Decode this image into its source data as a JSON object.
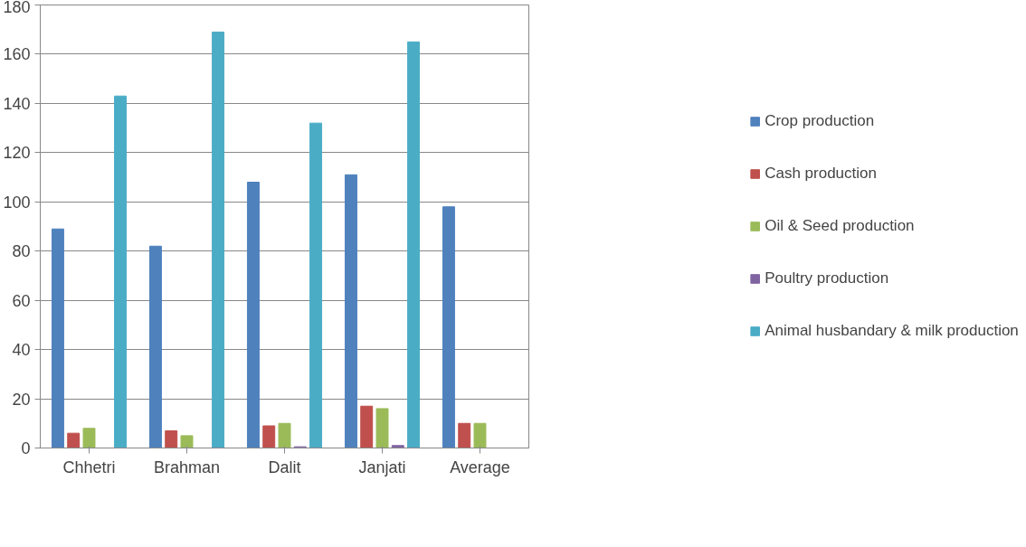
{
  "chart_data": {
    "type": "bar",
    "categories": [
      "Chhetri",
      "Brahman",
      "Dalit",
      "Janjati",
      "Average"
    ],
    "series": [
      {
        "name": "Crop production",
        "color": "#4f81bd",
        "values": [
          89,
          82,
          108,
          111,
          98
        ]
      },
      {
        "name": "Cash production",
        "color": "#c0504d",
        "values": [
          6,
          7,
          9,
          17,
          10
        ]
      },
      {
        "name": "Oil & Seed production",
        "color": "#9bbb59",
        "values": [
          8,
          5,
          10,
          16,
          10
        ]
      },
      {
        "name": "Poultry production",
        "color": "#8064a2",
        "values": [
          0,
          0,
          0.5,
          1,
          0
        ]
      },
      {
        "name": "Animal husbandary & milk production",
        "color": "#4bacc6",
        "values": [
          143,
          169,
          132,
          165,
          null
        ]
      }
    ],
    "ylim": [
      0,
      180
    ],
    "yticks": [
      0,
      20,
      40,
      60,
      80,
      100,
      120,
      140,
      160,
      180
    ],
    "grid": "y",
    "legend": "right"
  }
}
